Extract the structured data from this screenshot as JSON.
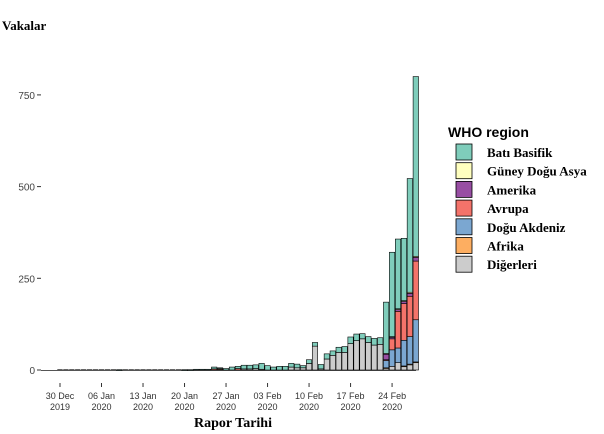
{
  "chart_data": {
    "type": "bar",
    "stacked": true,
    "title": "",
    "ylabel": "Vakalar",
    "xlabel": "Rapor Tarihi",
    "ylim": [
      0,
      950
    ],
    "yticks": [
      0,
      250,
      500,
      750
    ],
    "xticks": [
      {
        "index": 0,
        "line1": "30 Dec",
        "line2": "2019"
      },
      {
        "index": 7,
        "line1": "06 Jan",
        "line2": "2020"
      },
      {
        "index": 14,
        "line1": "13 Jan",
        "line2": "2020"
      },
      {
        "index": 21,
        "line1": "20 Jan",
        "line2": "2020"
      },
      {
        "index": 28,
        "line1": "27 Jan",
        "line2": "2020"
      },
      {
        "index": 35,
        "line1": "03 Feb",
        "line2": "2020"
      },
      {
        "index": 42,
        "line1": "10 Feb",
        "line2": "2020"
      },
      {
        "index": 49,
        "line1": "17 Feb",
        "line2": "2020"
      },
      {
        "index": 56,
        "line1": "24 Feb",
        "line2": "2020"
      }
    ],
    "legend": {
      "title": "WHO region",
      "position": "right",
      "entries": [
        {
          "key": "bati_basifik",
          "label": "Batı Basifik",
          "color": "#7fcdbb"
        },
        {
          "key": "guney_dogu_asya",
          "label": "Güney Doğu Asya",
          "color": "#ffffbf"
        },
        {
          "key": "amerika",
          "label": "Amerika",
          "color": "#984ea3"
        },
        {
          "key": "avrupa",
          "label": "Avrupa",
          "color": "#f4736a"
        },
        {
          "key": "dogu_akdeniz",
          "label": "Doğu Akdeniz",
          "color": "#7ba7d1"
        },
        {
          "key": "afrika",
          "label": "Afrika",
          "color": "#fdae61"
        },
        {
          "key": "digerleri",
          "label": "Diğerleri",
          "color": "#cccccc"
        }
      ]
    },
    "stack_order_bottom_to_top": [
      "digerleri",
      "afrika",
      "dogu_akdeniz",
      "avrupa",
      "amerika",
      "guney_dogu_asya",
      "bati_basifik"
    ],
    "categories": [
      "30 Dec",
      "31 Dec",
      "01 Jan",
      "02 Jan",
      "03 Jan",
      "04 Jan",
      "05 Jan",
      "06 Jan",
      "07 Jan",
      "08 Jan",
      "09 Jan",
      "10 Jan",
      "11 Jan",
      "12 Jan",
      "13 Jan",
      "14 Jan",
      "15 Jan",
      "16 Jan",
      "17 Jan",
      "18 Jan",
      "19 Jan",
      "20 Jan",
      "21 Jan",
      "22 Jan",
      "23 Jan",
      "24 Jan",
      "25 Jan",
      "26 Jan",
      "27 Jan",
      "28 Jan",
      "29 Jan",
      "30 Jan",
      "31 Jan",
      "01 Feb",
      "02 Feb",
      "03 Feb",
      "04 Feb",
      "05 Feb",
      "06 Feb",
      "07 Feb",
      "08 Feb",
      "09 Feb",
      "10 Feb",
      "11 Feb",
      "12 Feb",
      "13 Feb",
      "14 Feb",
      "15 Feb",
      "16 Feb",
      "17 Feb",
      "18 Feb",
      "19 Feb",
      "20 Feb",
      "21 Feb",
      "22 Feb",
      "23 Feb",
      "24 Feb",
      "25 Feb",
      "26 Feb",
      "27 Feb",
      "28 Feb"
    ],
    "series": [
      {
        "key": "bati_basifik",
        "name": "Batı Basifik",
        "values": [
          0,
          0,
          0,
          0,
          0,
          0,
          0,
          0,
          0,
          0,
          1,
          0,
          0,
          0,
          0,
          0,
          0,
          0,
          0,
          0,
          0,
          1,
          1,
          2,
          2,
          2,
          5,
          2,
          4,
          8,
          6,
          10,
          10,
          10,
          16,
          12,
          8,
          10,
          10,
          10,
          10,
          6,
          10,
          10,
          12,
          14,
          12,
          14,
          16,
          18,
          18,
          14,
          16,
          18,
          18,
          140,
          230,
          190,
          170,
          310,
          490
        ]
      },
      {
        "key": "guney_dogu_asya",
        "name": "Güney Doğu Asya",
        "values": [
          0,
          0,
          0,
          0,
          0,
          0,
          0,
          0,
          0,
          0,
          0,
          0,
          0,
          0,
          0,
          0,
          0,
          0,
          0,
          0,
          0,
          0,
          0,
          0,
          0,
          0,
          0,
          1,
          0,
          0,
          0,
          0,
          0,
          0,
          0,
          0,
          0,
          0,
          0,
          0,
          0,
          0,
          0,
          0,
          0,
          0,
          0,
          0,
          0,
          0,
          0,
          0,
          0,
          0,
          0,
          2,
          2,
          2,
          2,
          3,
          3
        ]
      },
      {
        "key": "amerika",
        "name": "Amerika",
        "values": [
          0,
          0,
          0,
          0,
          0,
          0,
          0,
          0,
          0,
          0,
          0,
          0,
          0,
          0,
          0,
          0,
          0,
          0,
          0,
          0,
          0,
          0,
          0,
          0,
          0,
          0,
          0,
          0,
          0,
          0,
          0,
          0,
          0,
          0,
          0,
          0,
          0,
          0,
          0,
          0,
          0,
          0,
          0,
          0,
          0,
          0,
          0,
          0,
          0,
          0,
          0,
          0,
          0,
          0,
          0,
          15,
          4,
          5,
          6,
          8,
          10
        ]
      },
      {
        "key": "avrupa",
        "name": "Avrupa",
        "values": [
          0,
          0,
          0,
          0,
          0,
          0,
          0,
          0,
          0,
          0,
          0,
          0,
          0,
          0,
          0,
          0,
          0,
          0,
          0,
          0,
          0,
          0,
          0,
          0,
          0,
          0,
          3,
          3,
          0,
          0,
          4,
          0,
          0,
          0,
          0,
          0,
          0,
          0,
          0,
          0,
          0,
          0,
          0,
          0,
          0,
          0,
          0,
          0,
          0,
          0,
          0,
          0,
          0,
          0,
          0,
          2,
          30,
          100,
          100,
          110,
          160
        ]
      },
      {
        "key": "dogu_akdeniz",
        "name": "Doğu Akdeniz",
        "values": [
          0,
          0,
          0,
          0,
          0,
          0,
          0,
          0,
          0,
          0,
          0,
          0,
          0,
          0,
          0,
          0,
          0,
          0,
          0,
          0,
          0,
          0,
          0,
          0,
          0,
          0,
          0,
          0,
          0,
          0,
          0,
          0,
          0,
          0,
          0,
          0,
          0,
          0,
          0,
          0,
          0,
          0,
          0,
          0,
          0,
          0,
          0,
          0,
          0,
          0,
          0,
          0,
          0,
          0,
          0,
          20,
          45,
          40,
          70,
          75,
          115
        ]
      },
      {
        "key": "afrika",
        "name": "Afrika",
        "values": [
          0,
          0,
          0,
          0,
          0,
          0,
          0,
          0,
          0,
          0,
          0,
          0,
          0,
          0,
          0,
          0,
          0,
          0,
          0,
          0,
          0,
          0,
          0,
          0,
          0,
          0,
          0,
          0,
          0,
          0,
          0,
          0,
          0,
          0,
          0,
          0,
          0,
          0,
          0,
          0,
          0,
          0,
          0,
          0,
          0,
          0,
          0,
          0,
          0,
          0,
          0,
          0,
          0,
          0,
          0,
          1,
          0,
          0,
          1,
          1,
          2
        ]
      },
      {
        "key": "digerleri",
        "name": "Diğerleri",
        "values": [
          0,
          0,
          0,
          0,
          0,
          0,
          0,
          0,
          0,
          0,
          0,
          0,
          0,
          0,
          0,
          0,
          0,
          0,
          0,
          0,
          0,
          0,
          0,
          0,
          0,
          0,
          0,
          0,
          0,
          0,
          0,
          3,
          3,
          4,
          2,
          0,
          0,
          0,
          0,
          8,
          6,
          6,
          18,
          65,
          3,
          30,
          40,
          48,
          48,
          72,
          80,
          85,
          75,
          68,
          70,
          5,
          10,
          20,
          10,
          15,
          20
        ]
      }
    ]
  }
}
